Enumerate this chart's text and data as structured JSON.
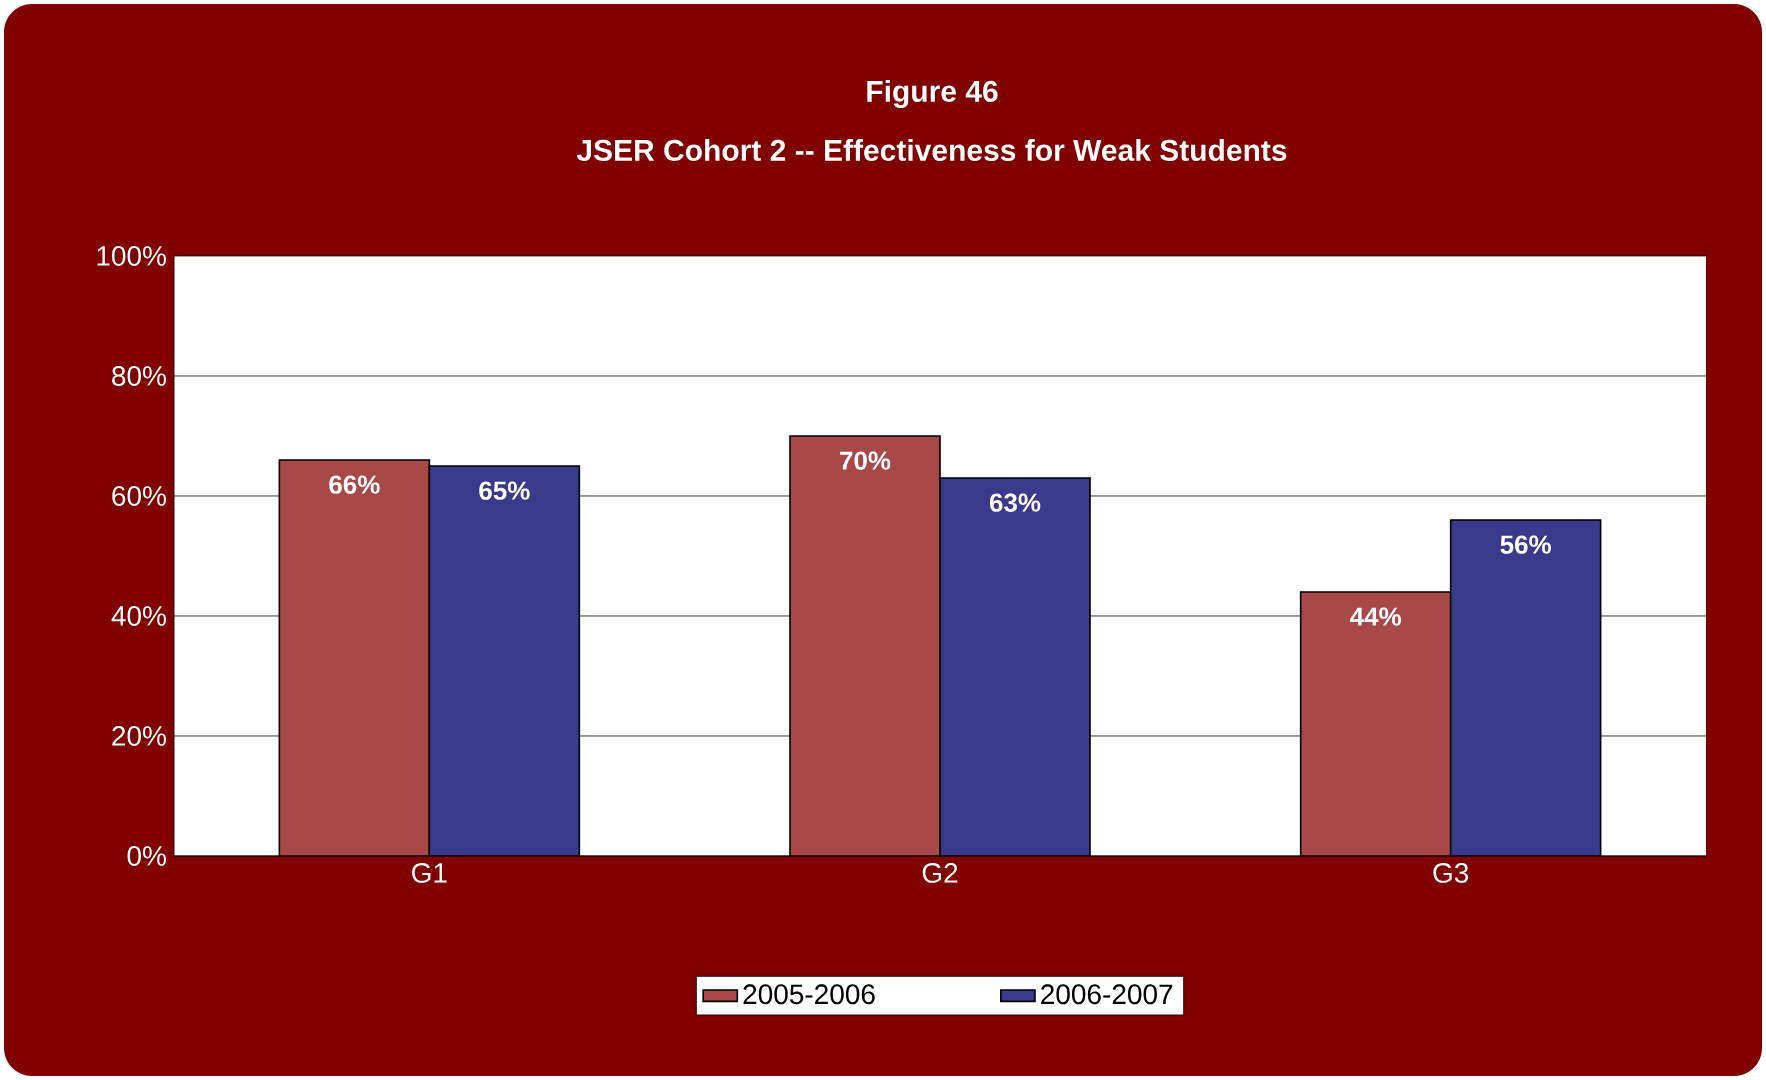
{
  "chart_data": {
    "type": "bar",
    "title": "Figure 46",
    "subtitle": "JSER Cohort 2 -- Effectiveness  for Weak Students",
    "categories": [
      "G1",
      "G2",
      "G3"
    ],
    "series": [
      {
        "name": "2005-2006",
        "color": "#a84848",
        "values": [
          66,
          70,
          44
        ],
        "value_labels": [
          "66%",
          "70%",
          "44%"
        ]
      },
      {
        "name": "2006-2007",
        "color": "#3a3a8c",
        "values": [
          65,
          63,
          56
        ],
        "value_labels": [
          "65%",
          "63%",
          "56%"
        ]
      }
    ],
    "ylim": [
      0,
      100
    ],
    "yticks": [
      {
        "value": 0,
        "label": "0%"
      },
      {
        "value": 20,
        "label": "20%"
      },
      {
        "value": 40,
        "label": "40%"
      },
      {
        "value": 60,
        "label": "60%"
      },
      {
        "value": 80,
        "label": "80%"
      },
      {
        "value": 100,
        "label": "100%"
      }
    ],
    "grid": "y",
    "legend": "bottom"
  }
}
